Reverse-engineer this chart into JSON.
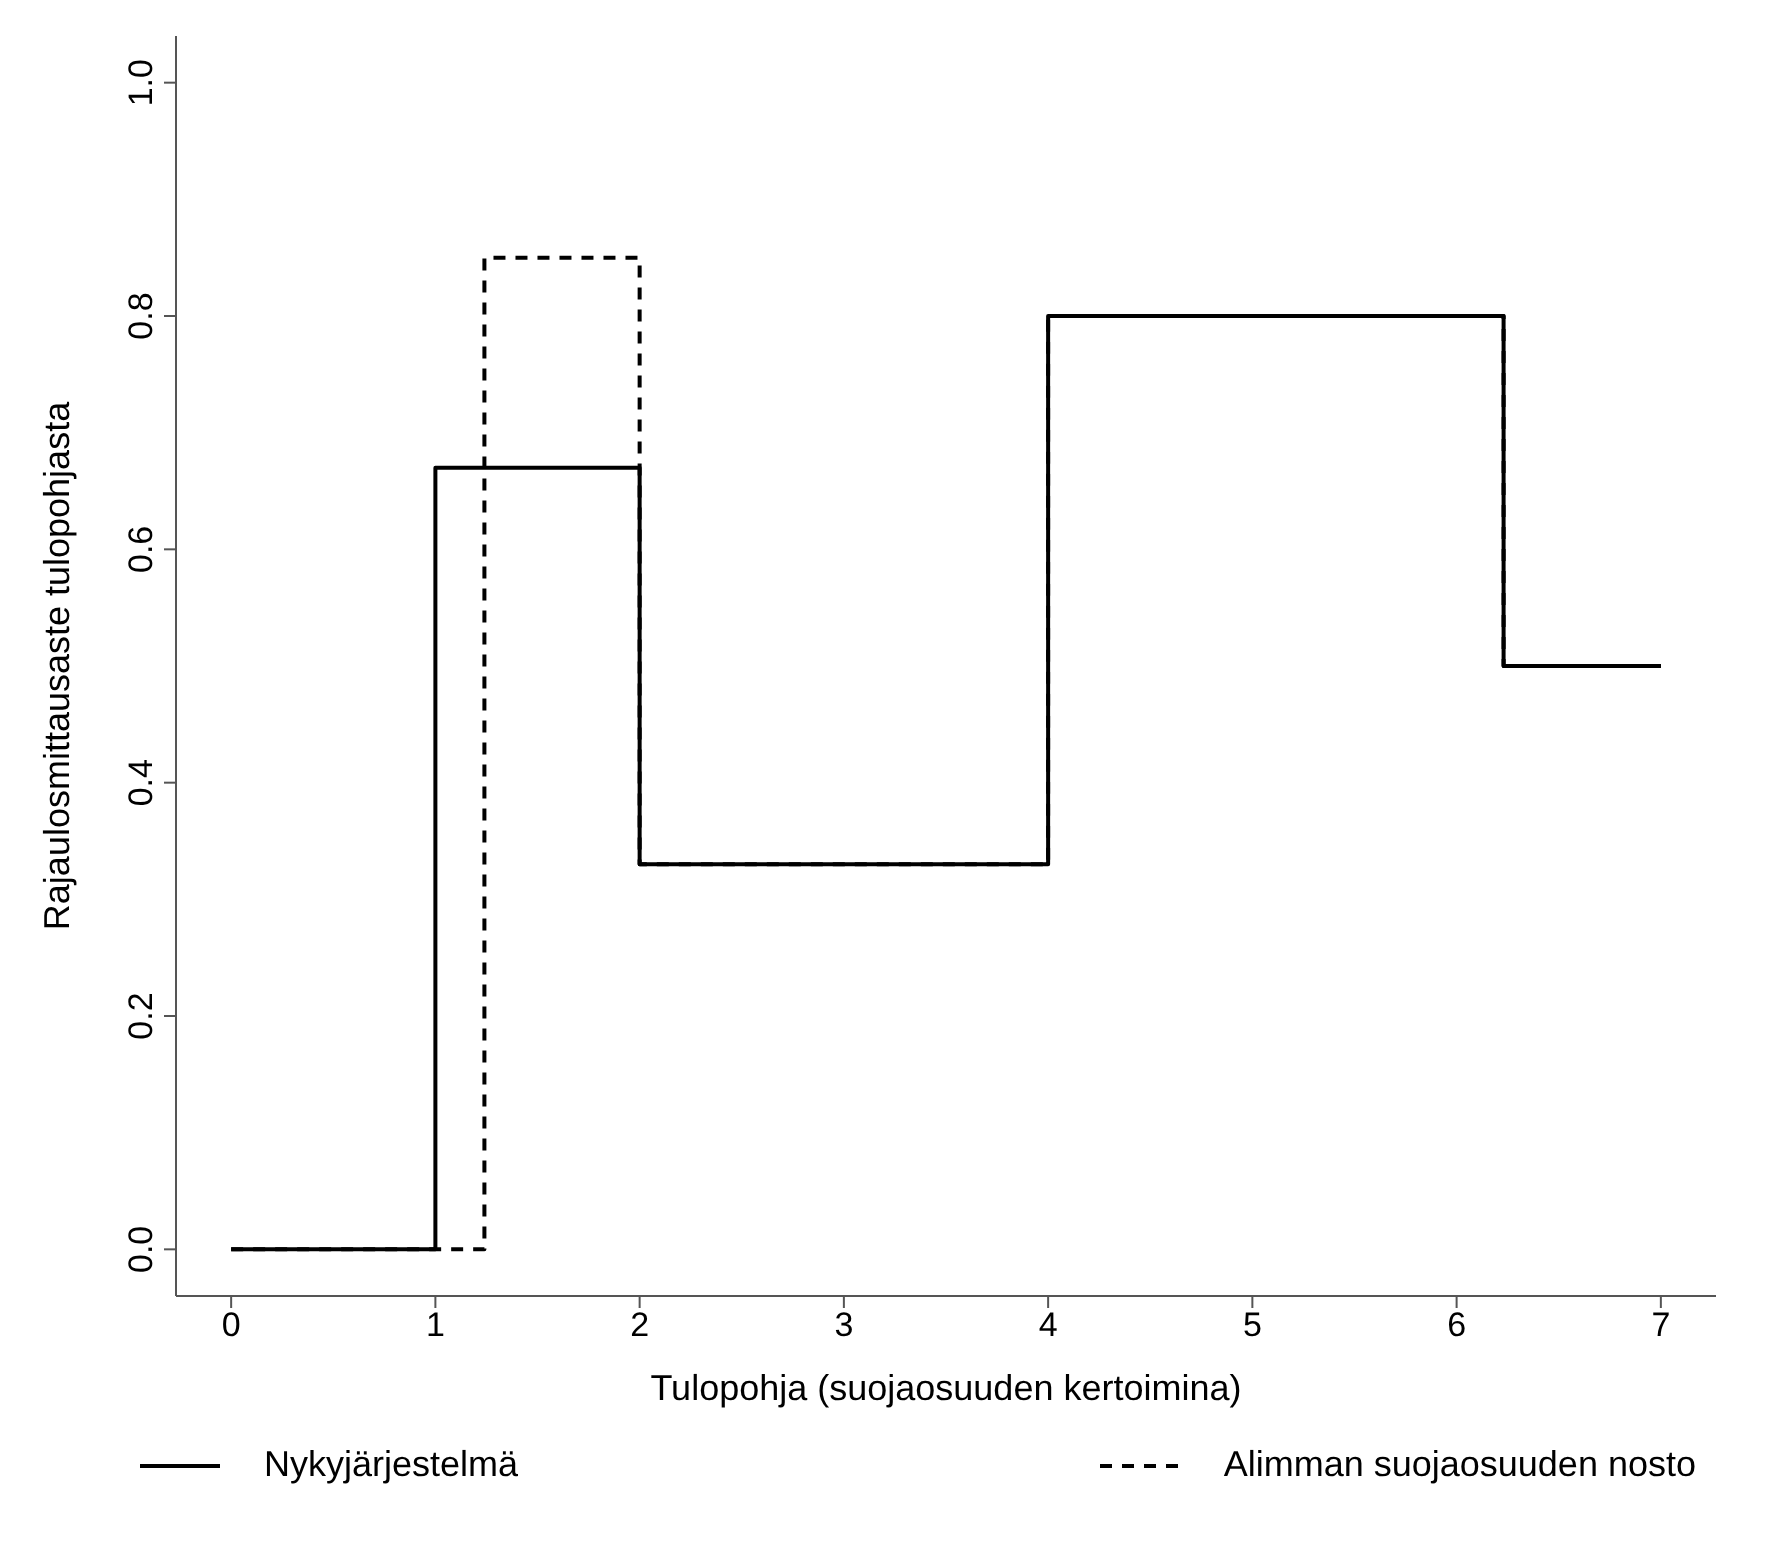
{
  "chart_data": {
    "type": "step",
    "xlabel": "Tulopohja (suojaosuuden kertoimina)",
    "ylabel": "Rajaulosmittausaste tulopohjasta",
    "xlim": [
      -0.27,
      7.27
    ],
    "xticks": [
      0,
      1,
      2,
      3,
      4,
      5,
      6,
      7
    ],
    "ylim": [
      -0.04,
      1.04
    ],
    "yticks": [
      {
        "value": 0,
        "label": "0.0"
      },
      {
        "value": 0.2,
        "label": "0.2"
      },
      {
        "value": 0.4,
        "label": "0.4"
      },
      {
        "value": 0.6,
        "label": "0.6"
      },
      {
        "value": 0.8,
        "label": "0.8"
      },
      {
        "value": 1,
        "label": "1.0"
      }
    ],
    "grid": false,
    "legend": "bottom",
    "series": [
      {
        "name": "Nykyjärjestelmä",
        "color": "#000000",
        "line_style": "solid",
        "x": [
          0,
          1,
          2,
          4,
          6.23,
          7
        ],
        "values": [
          0,
          0.67,
          0.33,
          0.8,
          0.5,
          0.5
        ]
      },
      {
        "name": "Alimman suojaosuuden nosto",
        "color": "#000000",
        "line_style": "dashed",
        "x": [
          0,
          1.24,
          2,
          4,
          6.23,
          7
        ],
        "values": [
          0,
          0.85,
          0.33,
          0.8,
          0.5,
          0.5
        ]
      }
    ]
  }
}
